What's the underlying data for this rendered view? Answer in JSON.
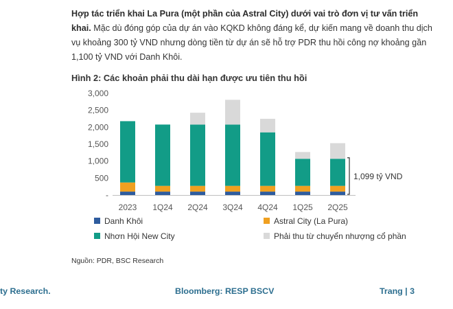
{
  "paragraph": {
    "bold": "Hợp tác triển khai La Pura (một phần của Astral City) dưới vai trò đơn vị tư vấn triển khai.",
    "rest": " Mặc dù đóng góp của dự án vào KQKD không đáng kể, dự kiến mang về doanh thu dịch vụ khoảng 300 tỷ VND nhưng dòng tiền từ dự án sẽ hỗ trợ PDR thu hồi công nợ khoảng gần 1,100 tỷ VND với Danh Khôi."
  },
  "figure_title": "Hình 2:  Các khoản phải thu dài hạn được ưu tiên thu hồi",
  "chart_data": {
    "type": "bar",
    "stacked": true,
    "categories": [
      "2023",
      "1Q24",
      "2Q24",
      "3Q24",
      "4Q24",
      "1Q25",
      "2Q25"
    ],
    "series": [
      {
        "name": "Danh Khôi",
        "color": "#2e5c9e",
        "values": [
          100,
          100,
          100,
          100,
          100,
          100,
          100
        ]
      },
      {
        "name": "Astral City (La Pura)",
        "color": "#f0a020",
        "values": [
          270,
          170,
          170,
          170,
          170,
          170,
          170
        ]
      },
      {
        "name": "Nhơn Hội New City",
        "color": "#129c87",
        "values": [
          1810,
          1810,
          1810,
          1810,
          1580,
          800,
          800
        ]
      },
      {
        "name": "Phải thu từ chuyển nhượng cổ phần",
        "color": "#d9d9d9",
        "values": [
          0,
          0,
          350,
          730,
          400,
          200,
          460
        ]
      }
    ],
    "ylim": [
      0,
      3000
    ],
    "yticks": [
      0,
      500,
      1000,
      1500,
      2000,
      2500,
      3000
    ],
    "ytick_labels": [
      "-",
      "500",
      "1,000",
      "1,500",
      "2,000",
      "2,500",
      "3,000"
    ],
    "grid": false,
    "legend_position": "bottom",
    "annotation": {
      "text": "1,099 tỷ VND",
      "category": "2Q25",
      "from": 0,
      "to": 1099
    }
  },
  "source": "Nguồn: PDR, BSC Research",
  "footer": {
    "left": "ty Research.",
    "center": "Bloomberg: RESP BSCV",
    "right": "Trang | 3"
  }
}
